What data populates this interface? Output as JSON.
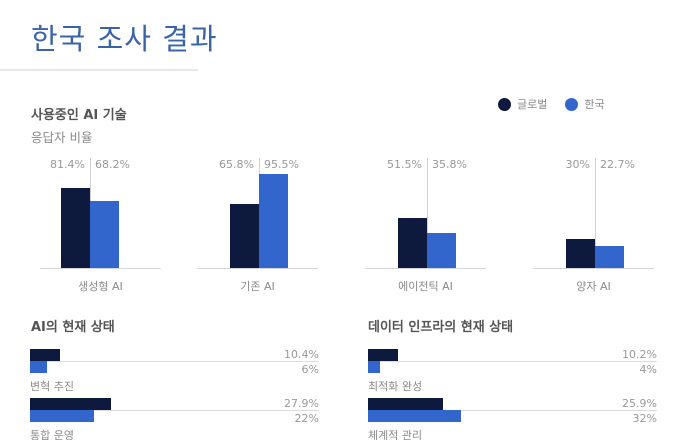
{
  "header": {
    "title": "한국 조사 결과"
  },
  "colors": {
    "title": "#3a64a8",
    "global": "#0d1a3d",
    "korea": "#3366cc"
  },
  "legend": [
    {
      "label": "글로벌",
      "color": "#0d1a3d"
    },
    {
      "label": "한국",
      "color": "#3366cc"
    }
  ],
  "column_section": {
    "title": "사용중인 AI 기술",
    "subtitle": "응답자 비율"
  },
  "status_ai": {
    "title": "AI의 현재 상태"
  },
  "status_data": {
    "title": "데이터 인프라의 현재 상태"
  },
  "chart_data": [
    {
      "type": "bar",
      "title": "사용중인 AI 기술",
      "subtitle": "응답자 비율",
      "categories": [
        "생성형 AI",
        "기존 AI",
        "에이전틱 AI",
        "양자 AI"
      ],
      "series": [
        {
          "name": "글로벌",
          "values": [
            81.4,
            65.8,
            51.5,
            30
          ],
          "labels": [
            "81.4%",
            "65.8%",
            "51.5%",
            "30%"
          ]
        },
        {
          "name": "한국",
          "values": [
            68.2,
            95.5,
            35.8,
            22.7
          ],
          "labels": [
            "68.2%",
            "95.5%",
            "35.8%",
            "22.7%"
          ]
        }
      ],
      "legend_position": "top-right",
      "grid": false,
      "ylim": [
        0,
        100
      ]
    },
    {
      "type": "bar",
      "orientation": "horizontal",
      "title": "AI의 현재 상태",
      "categories": [
        "변혁 추진",
        "통합 운영"
      ],
      "series": [
        {
          "name": "글로벌",
          "values": [
            10.4,
            27.9
          ],
          "labels": [
            "10.4%",
            "27.9%"
          ]
        },
        {
          "name": "한국",
          "values": [
            6,
            22
          ],
          "labels": [
            "6%",
            "22%"
          ]
        }
      ],
      "xlim": [
        0,
        100
      ]
    },
    {
      "type": "bar",
      "orientation": "horizontal",
      "title": "데이터 인프라의 현재 상태",
      "categories": [
        "최적화 완성",
        "체계적 관리"
      ],
      "series": [
        {
          "name": "글로벌",
          "values": [
            10.2,
            25.9
          ],
          "labels": [
            "10.2%",
            "25.9%"
          ]
        },
        {
          "name": "한국",
          "values": [
            4,
            32
          ],
          "labels": [
            "4%",
            "32%"
          ]
        }
      ],
      "xlim": [
        0,
        100
      ]
    }
  ]
}
